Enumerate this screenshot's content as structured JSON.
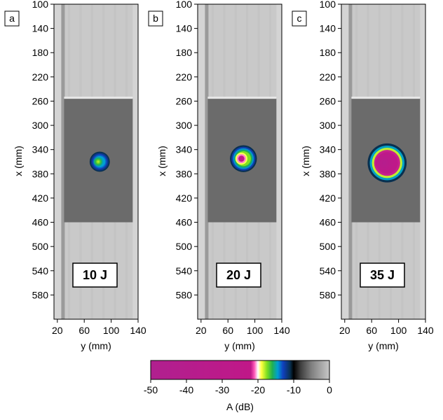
{
  "chart_data": [
    {
      "type": "heatmap",
      "panel_label": "a",
      "energy_label": "10 J",
      "xlabel": "y (mm)",
      "ylabel": "x (mm)",
      "x_ticks": [
        20,
        60,
        100,
        140
      ],
      "y_ticks": [
        100,
        140,
        180,
        220,
        260,
        300,
        340,
        380,
        420,
        460,
        500,
        540,
        580
      ],
      "xlim": [
        15,
        140
      ],
      "ylim": [
        100,
        620
      ],
      "specimen": {
        "y_range": [
          30,
          132
        ],
        "x_range": [
          100,
          620
        ]
      },
      "dark_zone": {
        "y_range": [
          30,
          132
        ],
        "x_range": [
          255,
          460
        ]
      },
      "damage": {
        "center_y": 83,
        "center_x": 360,
        "radius_mm": 15,
        "min_amplitude_db": -18
      }
    },
    {
      "type": "heatmap",
      "panel_label": "b",
      "energy_label": "20 J",
      "xlabel": "y (mm)",
      "ylabel": "x (mm)",
      "x_ticks": [
        20,
        60,
        100,
        140
      ],
      "y_ticks": [
        100,
        140,
        180,
        220,
        260,
        300,
        340,
        380,
        420,
        460,
        500,
        540,
        580
      ],
      "xlim": [
        15,
        140
      ],
      "ylim": [
        100,
        620
      ],
      "specimen": {
        "y_range": [
          30,
          132
        ],
        "x_range": [
          100,
          620
        ]
      },
      "dark_zone": {
        "y_range": [
          30,
          132
        ],
        "x_range": [
          255,
          460
        ]
      },
      "damage": {
        "center_y": 83,
        "center_x": 355,
        "radius_mm": 20,
        "min_amplitude_db": -24
      }
    },
    {
      "type": "heatmap",
      "panel_label": "c",
      "energy_label": "35 J",
      "xlabel": "y (mm)",
      "ylabel": "x (mm)",
      "x_ticks": [
        20,
        60,
        100,
        140
      ],
      "y_ticks": [
        100,
        140,
        180,
        220,
        260,
        300,
        340,
        380,
        420,
        460,
        500,
        540,
        580
      ],
      "xlim": [
        15,
        140
      ],
      "ylim": [
        100,
        620
      ],
      "specimen": {
        "y_range": [
          30,
          132
        ],
        "x_range": [
          100,
          620
        ]
      },
      "dark_zone": {
        "y_range": [
          30,
          132
        ],
        "x_range": [
          255,
          460
        ]
      },
      "damage": {
        "center_y": 83,
        "center_x": 362,
        "radius_mm": 29,
        "min_amplitude_db": -40
      }
    }
  ],
  "colorbar": {
    "label": "A (dB)",
    "ticks": [
      -50,
      -40,
      -30,
      -20,
      -10,
      0
    ],
    "range": [
      -50,
      0
    ],
    "color_stops": [
      {
        "db": -50,
        "color": "#b0208f"
      },
      {
        "db": -22,
        "color": "#c01888"
      },
      {
        "db": -21,
        "color": "#ff58b8"
      },
      {
        "db": -20,
        "color": "#ffffff"
      },
      {
        "db": -19,
        "color": "#ffff40"
      },
      {
        "db": -17.5,
        "color": "#80e020"
      },
      {
        "db": -16,
        "color": "#20b050"
      },
      {
        "db": -14.5,
        "color": "#00a0d0"
      },
      {
        "db": -13,
        "color": "#1040c0"
      },
      {
        "db": -11,
        "color": "#083050"
      },
      {
        "db": -10,
        "color": "#000000"
      },
      {
        "db": -8,
        "color": "#404040"
      },
      {
        "db": -5,
        "color": "#808080"
      },
      {
        "db": 0,
        "color": "#c8c8c8"
      }
    ]
  }
}
